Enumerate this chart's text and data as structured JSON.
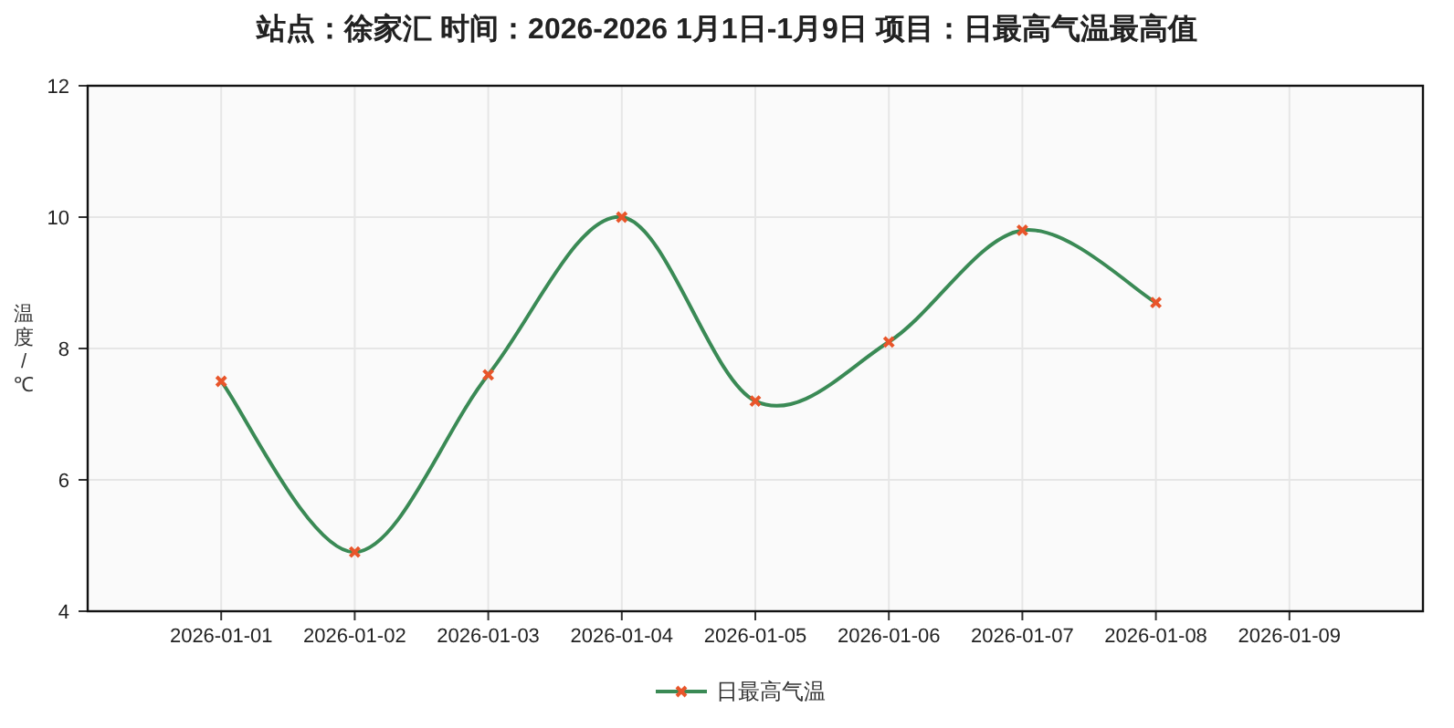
{
  "chart_data": {
    "type": "line",
    "title": "站点：徐家汇 时间：2026-2026  1月1日-1月9日 项目：日最高气温最高值",
    "ylabel": "温度/℃",
    "categories": [
      "2026-01-01",
      "2026-01-02",
      "2026-01-03",
      "2026-01-04",
      "2026-01-05",
      "2026-01-06",
      "2026-01-07",
      "2026-01-08",
      "2026-01-09"
    ],
    "series": [
      {
        "name": "日最高气温",
        "color": "#3a8a55",
        "colors": [
          "#e8552a",
          "#e8552a",
          "#e8552a",
          "#e8552a",
          "#e8552a",
          "#e8552a",
          "#e8552a",
          "#e8552a",
          null
        ],
        "values": [
          7.5,
          4.9,
          7.6,
          10.0,
          7.2,
          8.1,
          9.8,
          8.7,
          null
        ]
      }
    ],
    "ylim": [
      4,
      12
    ],
    "yticks": [
      4,
      6,
      8,
      10,
      12
    ],
    "grid": true,
    "legend": "bottom",
    "marker": "cross",
    "line_style": "solid"
  }
}
